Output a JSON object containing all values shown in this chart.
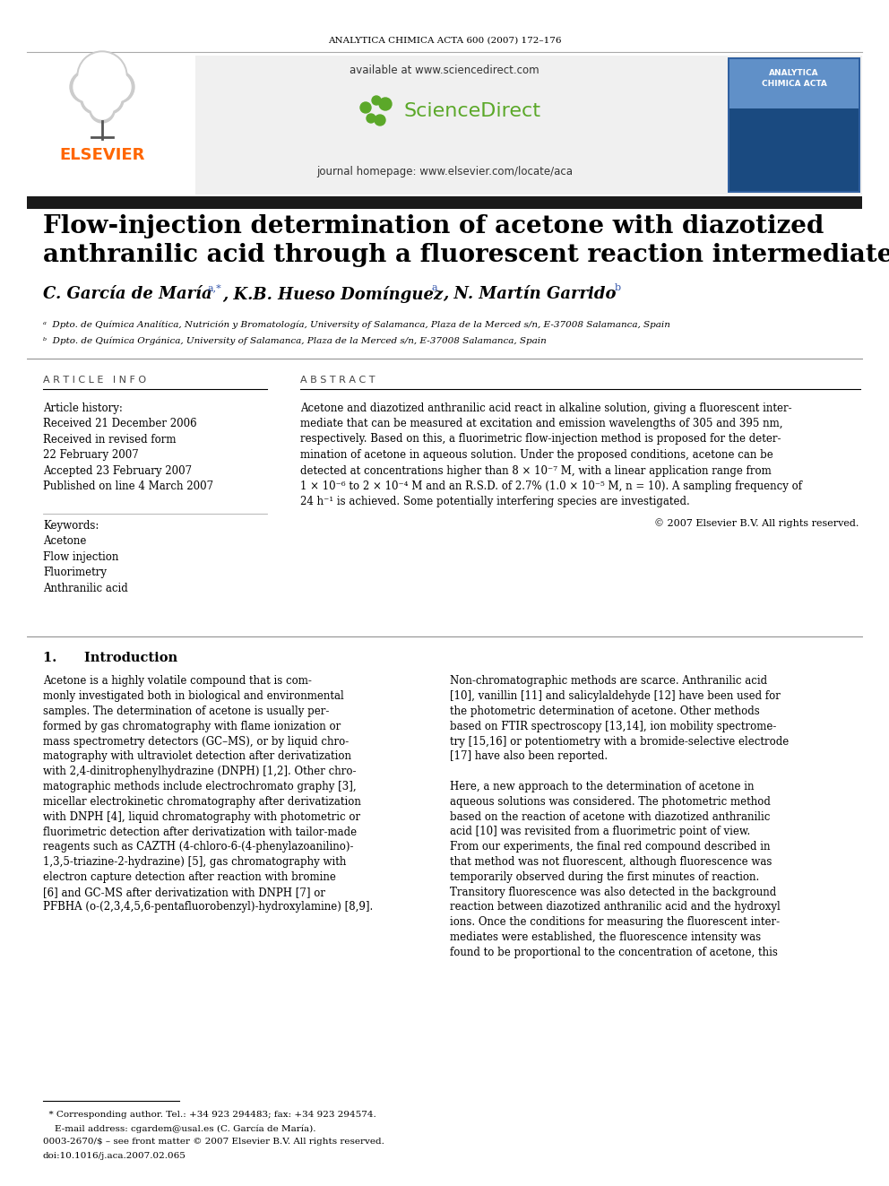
{
  "journal_header": "ANALYTICA CHIMICA ACTA 600 (2007) 172–176",
  "title_line1": "Flow-injection determination of acetone with diazotized",
  "title_line2": "anthranilic acid through a fluorescent reaction intermediate",
  "author1": "C. García de María",
  "author1_sup": "a,*",
  "author2": ", K.B. Hueso Domínguez",
  "author2_sup": "a",
  "author3": ", N. Martín Garrido",
  "author3_sup": "b",
  "affil_a": "ᵃ  Dpto. de Química Analítica, Nutrición y Bromatología, University of Salamanca, Plaza de la Merced s/n, E-37008 Salamanca, Spain",
  "affil_b": "ᵇ  Dpto. de Química Orgánica, University of Salamanca, Plaza de la Merced s/n, E-37008 Salamanca, Spain",
  "article_info_header": "A R T I C L E   I N F O",
  "abstract_header": "A B S T R A C T",
  "article_history_label": "Article history:",
  "received1": "Received 21 December 2006",
  "received_revised": "Received in revised form",
  "revised_date": "22 February 2007",
  "accepted": "Accepted 23 February 2007",
  "published": "Published on line 4 March 2007",
  "keywords_label": "Keywords:",
  "keyword1": "Acetone",
  "keyword2": "Flow injection",
  "keyword3": "Fluorimetry",
  "keyword4": "Anthranilic acid",
  "abstract_lines": [
    "Acetone and diazotized anthranilic acid react in alkaline solution, giving a fluorescent inter-",
    "mediate that can be measured at excitation and emission wavelengths of 305 and 395 nm,",
    "respectively. Based on this, a fluorimetric flow-injection method is proposed for the deter-",
    "mination of acetone in aqueous solution. Under the proposed conditions, acetone can be",
    "detected at concentrations higher than 8 × 10⁻⁷ M, with a linear application range from",
    "1 × 10⁻⁶ to 2 × 10⁻⁴ M and an R.S.D. of 2.7% (1.0 × 10⁻⁵ M, n = 10). A sampling frequency of",
    "24 h⁻¹ is achieved. Some potentially interfering species are investigated."
  ],
  "copyright": "© 2007 Elsevier B.V. All rights reserved.",
  "intro_header": "1.      Introduction",
  "intro_col1": [
    "Acetone is a highly volatile compound that is com-",
    "monly investigated both in biological and environmental",
    "samples. The determination of acetone is usually per-",
    "formed by gas chromatography with flame ionization or",
    "mass spectrometry detectors (GC–MS), or by liquid chro-",
    "matography with ultraviolet detection after derivatization",
    "with 2,4-dinitrophenylhydrazine (DNPH) [1,2]. Other chro-",
    "matographic methods include electrochromato graphy [3],",
    "micellar electrokinetic chromatography after derivatization",
    "with DNPH [4], liquid chromatography with photometric or",
    "fluorimetric detection after derivatization with tailor-made",
    "reagents such as CAZTH (4-chloro-6-(4-phenylazoanilino)-",
    "1,3,5-triazine-2-hydrazine) [5], gas chromatography with",
    "electron capture detection after reaction with bromine",
    "[6] and GC-MS after derivatization with DNPH [7] or",
    "PFBHA (o-(2,3,4,5,6-pentafluorobenzyl)-hydroxylamine) [8,9]."
  ],
  "intro_col2": [
    "Non-chromatographic methods are scarce. Anthranilic acid",
    "[10], vanillin [11] and salicylaldehyde [12] have been used for",
    "the photometric determination of acetone. Other methods",
    "based on FTIR spectroscopy [13,14], ion mobility spectrome-",
    "try [15,16] or potentiometry with a bromide-selective electrode",
    "[17] have also been reported.",
    "",
    "Here, a new approach to the determination of acetone in",
    "aqueous solutions was considered. The photometric method",
    "based on the reaction of acetone with diazotized anthranilic",
    "acid [10] was revisited from a fluorimetric point of view.",
    "From our experiments, the final red compound described in",
    "that method was not fluorescent, although fluorescence was",
    "temporarily observed during the first minutes of reaction.",
    "Transitory fluorescence was also detected in the background",
    "reaction between diazotized anthranilic acid and the hydroxyl",
    "ions. Once the conditions for measuring the fluorescent inter-",
    "mediates were established, the fluorescence intensity was",
    "found to be proportional to the concentration of acetone, this"
  ],
  "footnote_line": "____",
  "footnote_star": "  * Corresponding author. Tel.: +34 923 294483; fax: +34 923 294574.",
  "footnote_email": "    E-mail address: cgardem@usal.es (C. García de María).",
  "footnote_issn": "0003-2670/$ – see front matter © 2007 Elsevier B.V. All rights reserved.",
  "footnote_doi": "doi:10.1016/j.aca.2007.02.065",
  "elsevier_color": "#FF6600",
  "link_color": "#3355AA",
  "title_bar_color": "#1A1A1A",
  "sd_green": "#5BA829",
  "gray_bg": "#F0F0F0"
}
